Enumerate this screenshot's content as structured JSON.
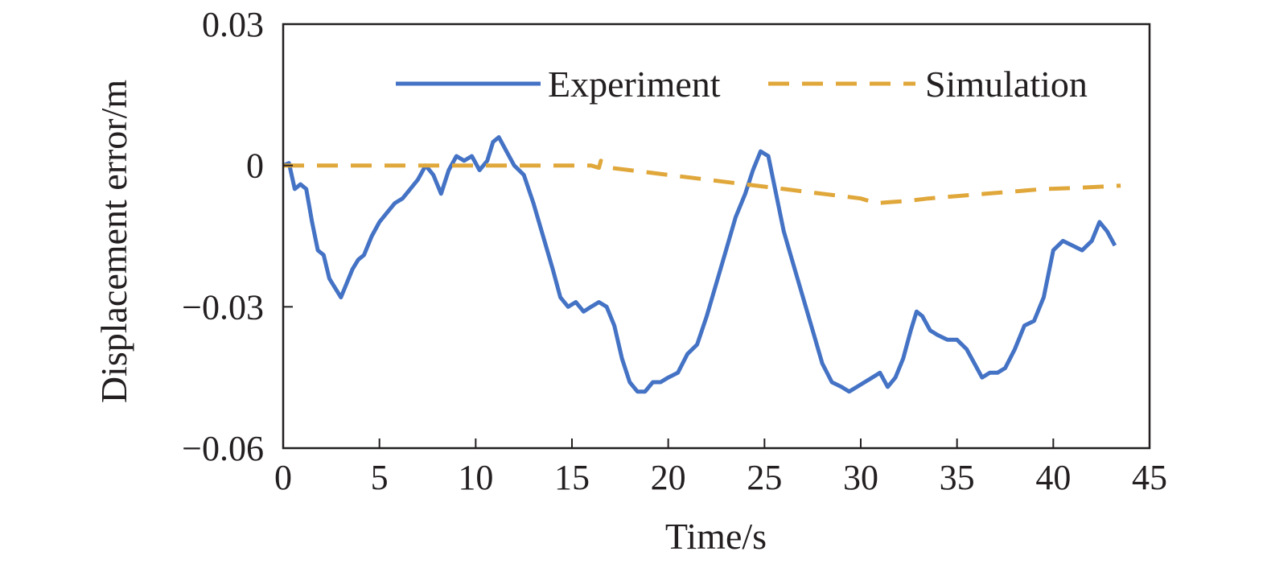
{
  "chart_data": {
    "type": "line",
    "title": "",
    "xlabel": "Time/s",
    "ylabel": "Displacement error/m",
    "xlim": [
      0,
      45
    ],
    "ylim": [
      -0.06,
      0.03
    ],
    "xticks": [
      0,
      5,
      10,
      15,
      20,
      25,
      30,
      35,
      40,
      45
    ],
    "xtick_labels": [
      "0",
      "5",
      "10",
      "15",
      "20",
      "25",
      "30",
      "35",
      "40",
      "45"
    ],
    "yticks": [
      -0.06,
      -0.03,
      0,
      0.03
    ],
    "ytick_labels": [
      "−0.06",
      "−0.03",
      "0",
      "0.03"
    ],
    "grid": false,
    "legend_position": "top-right",
    "series": [
      {
        "name": "Experiment",
        "color": "#4472c4",
        "style": "solid",
        "x": [
          0,
          0.3,
          0.6,
          0.9,
          1.2,
          1.5,
          1.8,
          2.1,
          2.4,
          2.7,
          3.0,
          3.3,
          3.6,
          3.9,
          4.2,
          4.6,
          5.0,
          5.4,
          5.8,
          6.2,
          6.6,
          7.0,
          7.4,
          7.8,
          8.2,
          8.6,
          9.0,
          9.4,
          9.8,
          10.2,
          10.6,
          10.9,
          11.2,
          11.6,
          12.0,
          12.5,
          13.0,
          13.5,
          14.0,
          14.4,
          14.8,
          15.2,
          15.6,
          16.0,
          16.4,
          16.8,
          17.2,
          17.6,
          18.0,
          18.4,
          18.8,
          19.2,
          19.6,
          20.0,
          20.5,
          21.0,
          21.5,
          22.0,
          22.5,
          23.0,
          23.5,
          24.0,
          24.4,
          24.8,
          25.2,
          25.6,
          26.0,
          26.5,
          27.0,
          27.5,
          28.0,
          28.5,
          29.0,
          29.4,
          29.8,
          30.2,
          30.6,
          31.0,
          31.4,
          31.8,
          32.2,
          32.6,
          32.9,
          33.2,
          33.6,
          34.0,
          34.5,
          35.0,
          35.5,
          35.9,
          36.3,
          36.7,
          37.1,
          37.5,
          38.0,
          38.5,
          39.0,
          39.5,
          40.0,
          40.5,
          41.0,
          41.5,
          42.0,
          42.4,
          42.8,
          43.2
        ],
        "y": [
          0,
          0.0005,
          -0.005,
          -0.004,
          -0.005,
          -0.012,
          -0.018,
          -0.019,
          -0.024,
          -0.026,
          -0.028,
          -0.025,
          -0.022,
          -0.02,
          -0.019,
          -0.015,
          -0.012,
          -0.01,
          -0.008,
          -0.007,
          -0.005,
          -0.003,
          0.0,
          -0.002,
          -0.006,
          -0.001,
          0.002,
          0.001,
          0.002,
          -0.001,
          0.001,
          0.005,
          0.006,
          0.003,
          0.0,
          -0.002,
          -0.008,
          -0.015,
          -0.022,
          -0.028,
          -0.03,
          -0.029,
          -0.031,
          -0.03,
          -0.029,
          -0.03,
          -0.034,
          -0.041,
          -0.046,
          -0.048,
          -0.048,
          -0.046,
          -0.046,
          -0.045,
          -0.044,
          -0.04,
          -0.038,
          -0.032,
          -0.025,
          -0.018,
          -0.011,
          -0.006,
          -0.001,
          0.003,
          0.002,
          -0.006,
          -0.014,
          -0.021,
          -0.028,
          -0.035,
          -0.042,
          -0.046,
          -0.047,
          -0.048,
          -0.047,
          -0.046,
          -0.045,
          -0.044,
          -0.047,
          -0.045,
          -0.041,
          -0.035,
          -0.031,
          -0.032,
          -0.035,
          -0.036,
          -0.037,
          -0.037,
          -0.039,
          -0.042,
          -0.045,
          -0.044,
          -0.044,
          -0.043,
          -0.039,
          -0.034,
          -0.033,
          -0.028,
          -0.018,
          -0.016,
          -0.017,
          -0.018,
          -0.016,
          -0.012,
          -0.014,
          -0.017
        ]
      },
      {
        "name": "Simulation",
        "color": "#e0a73a",
        "style": "dashed",
        "x": [
          0,
          2,
          4,
          6,
          8,
          10,
          12,
          14,
          16,
          16.4,
          16.5,
          17,
          18,
          19,
          20,
          21,
          22,
          23,
          24,
          25,
          26,
          27,
          28,
          29,
          30,
          30.8,
          31.5,
          32.5,
          33.5,
          35,
          36.5,
          38,
          39.5,
          41,
          42.5,
          43.5
        ],
        "y": [
          0,
          0,
          0,
          0,
          0,
          0,
          0,
          0,
          0,
          -0.0005,
          0.001,
          -0.0005,
          -0.001,
          -0.0015,
          -0.002,
          -0.0025,
          -0.003,
          -0.0035,
          -0.004,
          -0.0045,
          -0.005,
          -0.0055,
          -0.006,
          -0.0065,
          -0.007,
          -0.008,
          -0.0078,
          -0.0075,
          -0.007,
          -0.0065,
          -0.006,
          -0.0055,
          -0.005,
          -0.0048,
          -0.0045,
          -0.0043
        ]
      }
    ]
  }
}
